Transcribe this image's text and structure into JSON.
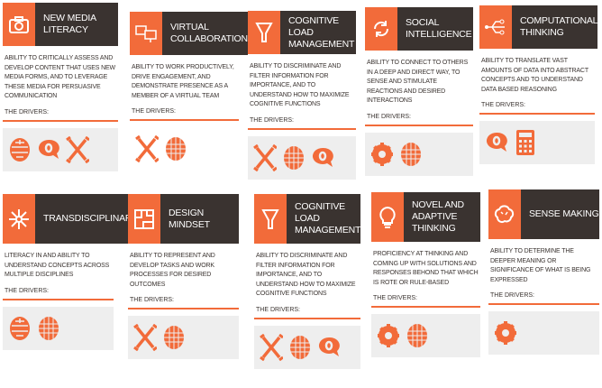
{
  "accent_color": "#f26b3a",
  "header_color": "#3a3330",
  "drivers_label": "THE DRIVERS:",
  "cards": [
    {
      "title": "NEW MEDIA LITERACY",
      "icon": "camera-icon",
      "description": "ABILITY TO CRITICALLY ASSESS AND DEVELOP CONTENT THAT USES NEW MEDIA FORMS, AND TO LEVERAGE THESE MEDIA FOR PERSUASIVE COMMUNICATION",
      "drivers": [
        "seal-icon",
        "speech-bubble-icon",
        "wrenches-icon"
      ]
    },
    {
      "title": "VIRTUAL COLLABORATION",
      "icon": "monitors-icon",
      "description": "ABILITY TO WORK PRODUCTIVELY, DRIVE ENGAGEMENT, AND DEMONSTRATE PRESENCE AS A MEMBER OF A VIRTUAL TEAM",
      "drivers": [
        "wrenches-icon",
        "globe-icon"
      ]
    },
    {
      "title": "COGNITIVE LOAD MANAGEMENT",
      "icon": "funnel-icon",
      "description": "ABILITY TO DISCRIMINATE AND FILTER INFORMATION FOR IMPORTANCE, AND TO UNDERSTAND HOW TO MAXIMIZE COGNITIVE FUNCTIONS",
      "drivers": [
        "wrenches-icon",
        "globe-icon",
        "speech-bubble-icon"
      ]
    },
    {
      "title": "SOCIAL INTELLIGENCE",
      "icon": "cycle-arrows-icon",
      "description": "ABILITY TO CONNECT TO OTHERS IN A DEEP AND DIRECT WAY, TO SENSE AND STIMULATE REACTIONS AND DESIRED INTERACTIONS",
      "drivers": [
        "gear-icon",
        "globe-icon"
      ]
    },
    {
      "title": "COMPUTATIONAL THINKING",
      "icon": "usb-icon",
      "description": "ABILITY TO TRANSLATE VAST AMOUNTS OF DATA INTO ABSTRACT CONCEPTS AND TO UNDERSTAND DATA BASED REASONING",
      "drivers": [
        "speech-bubble-icon",
        "calculator-icon"
      ]
    },
    {
      "title": "TRANSDISCIPLINARY",
      "icon": "arrows-out-icon",
      "description": "LITERACY IN AND ABILITY TO UNDERSTAND CONCEPTS ACROSS MULTIPLE DISCIPLINES",
      "drivers": [
        "seal-icon",
        "globe-icon"
      ]
    },
    {
      "title": "DESIGN MINDSET",
      "icon": "floorplan-icon",
      "description": "ABILITY TO REPRESENT AND DEVELOP TASKS AND WORK PROCESSES FOR DESIRED OUTCOMES",
      "drivers": [
        "wrenches-icon",
        "globe-icon"
      ]
    },
    {
      "title": "COGNITIVE LOAD MANAGEMENT",
      "icon": "funnel-icon",
      "description": "ABILITY TO DISCRIMINATE AND FILTER INFORMATION FOR IMPORTANCE, AND TO UNDERSTAND HOW TO MAXIMIZE COGNITIVE FUNCTIONS",
      "drivers": [
        "wrenches-icon",
        "globe-icon",
        "speech-bubble-icon"
      ]
    },
    {
      "title": "NOVEL AND ADAPTIVE THINKING",
      "icon": "lightbulb-icon",
      "description": "PROFICIENCY AT THINKING AND COMING UP WITH SOLUTIONS AND RESPONSES BEHOND THAT WHICH IS ROTE OR RULE-BASED",
      "drivers": [
        "gear-icon",
        "globe-icon"
      ]
    },
    {
      "title": "SENSE MAKING",
      "icon": "brain-icon",
      "description": "ABILITY TO DETERMINE THE DEEPER MEANING OR SIGNIFICANCE OF WHAT IS BEING EXPRESSED",
      "drivers": [
        "gear-icon"
      ]
    }
  ]
}
